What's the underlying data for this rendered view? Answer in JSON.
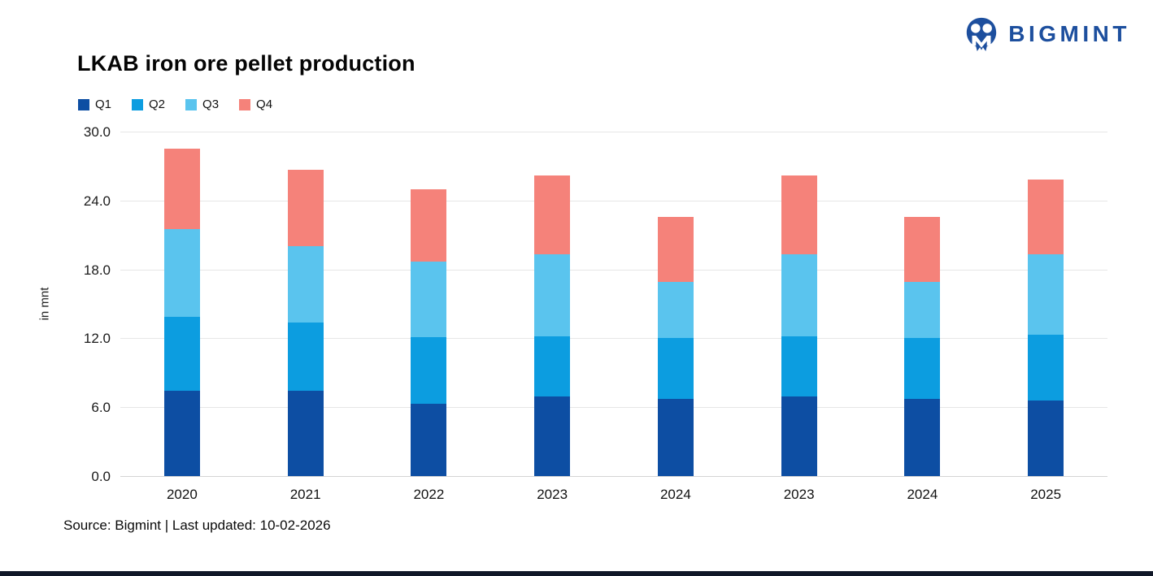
{
  "header": {
    "title": "LKAB iron ore pellet production",
    "logo_text": "BIGMINT"
  },
  "footer": {
    "source_line": "Source: Bigmint | Last updated: 10-02-2026"
  },
  "colors": {
    "brand_blue": "#1d4f9e",
    "grid": "#e6e6e6",
    "baseline": "#d4d4d4",
    "bottom_strip": "#101728"
  },
  "chart_data": {
    "type": "bar",
    "stacked": true,
    "title": "LKAB iron ore pellet production",
    "ylabel": "in mnt",
    "ylim": [
      0,
      30
    ],
    "yticks": [
      0.0,
      6.0,
      12.0,
      18.0,
      24.0,
      30.0
    ],
    "grid": "horizontal",
    "legend_position": "top-left",
    "categories": [
      "2020",
      "2021",
      "2022",
      "2023",
      "2024",
      "2023",
      "2024",
      "2025"
    ],
    "series": [
      {
        "name": "Q1",
        "color": "#0d4ea3",
        "values": [
          7.4,
          7.4,
          6.3,
          6.9,
          6.7,
          6.9,
          6.7,
          6.6
        ]
      },
      {
        "name": "Q2",
        "color": "#0c9de0",
        "values": [
          6.5,
          6.0,
          5.8,
          5.3,
          5.3,
          5.3,
          5.3,
          5.7
        ]
      },
      {
        "name": "Q3",
        "color": "#5ac4ee",
        "values": [
          7.6,
          6.6,
          6.6,
          7.1,
          4.9,
          7.1,
          4.9,
          7.0
        ]
      },
      {
        "name": "Q4",
        "color": "#f5827a",
        "values": [
          7.0,
          6.7,
          6.3,
          6.9,
          5.7,
          6.9,
          5.7,
          6.5
        ]
      }
    ]
  }
}
